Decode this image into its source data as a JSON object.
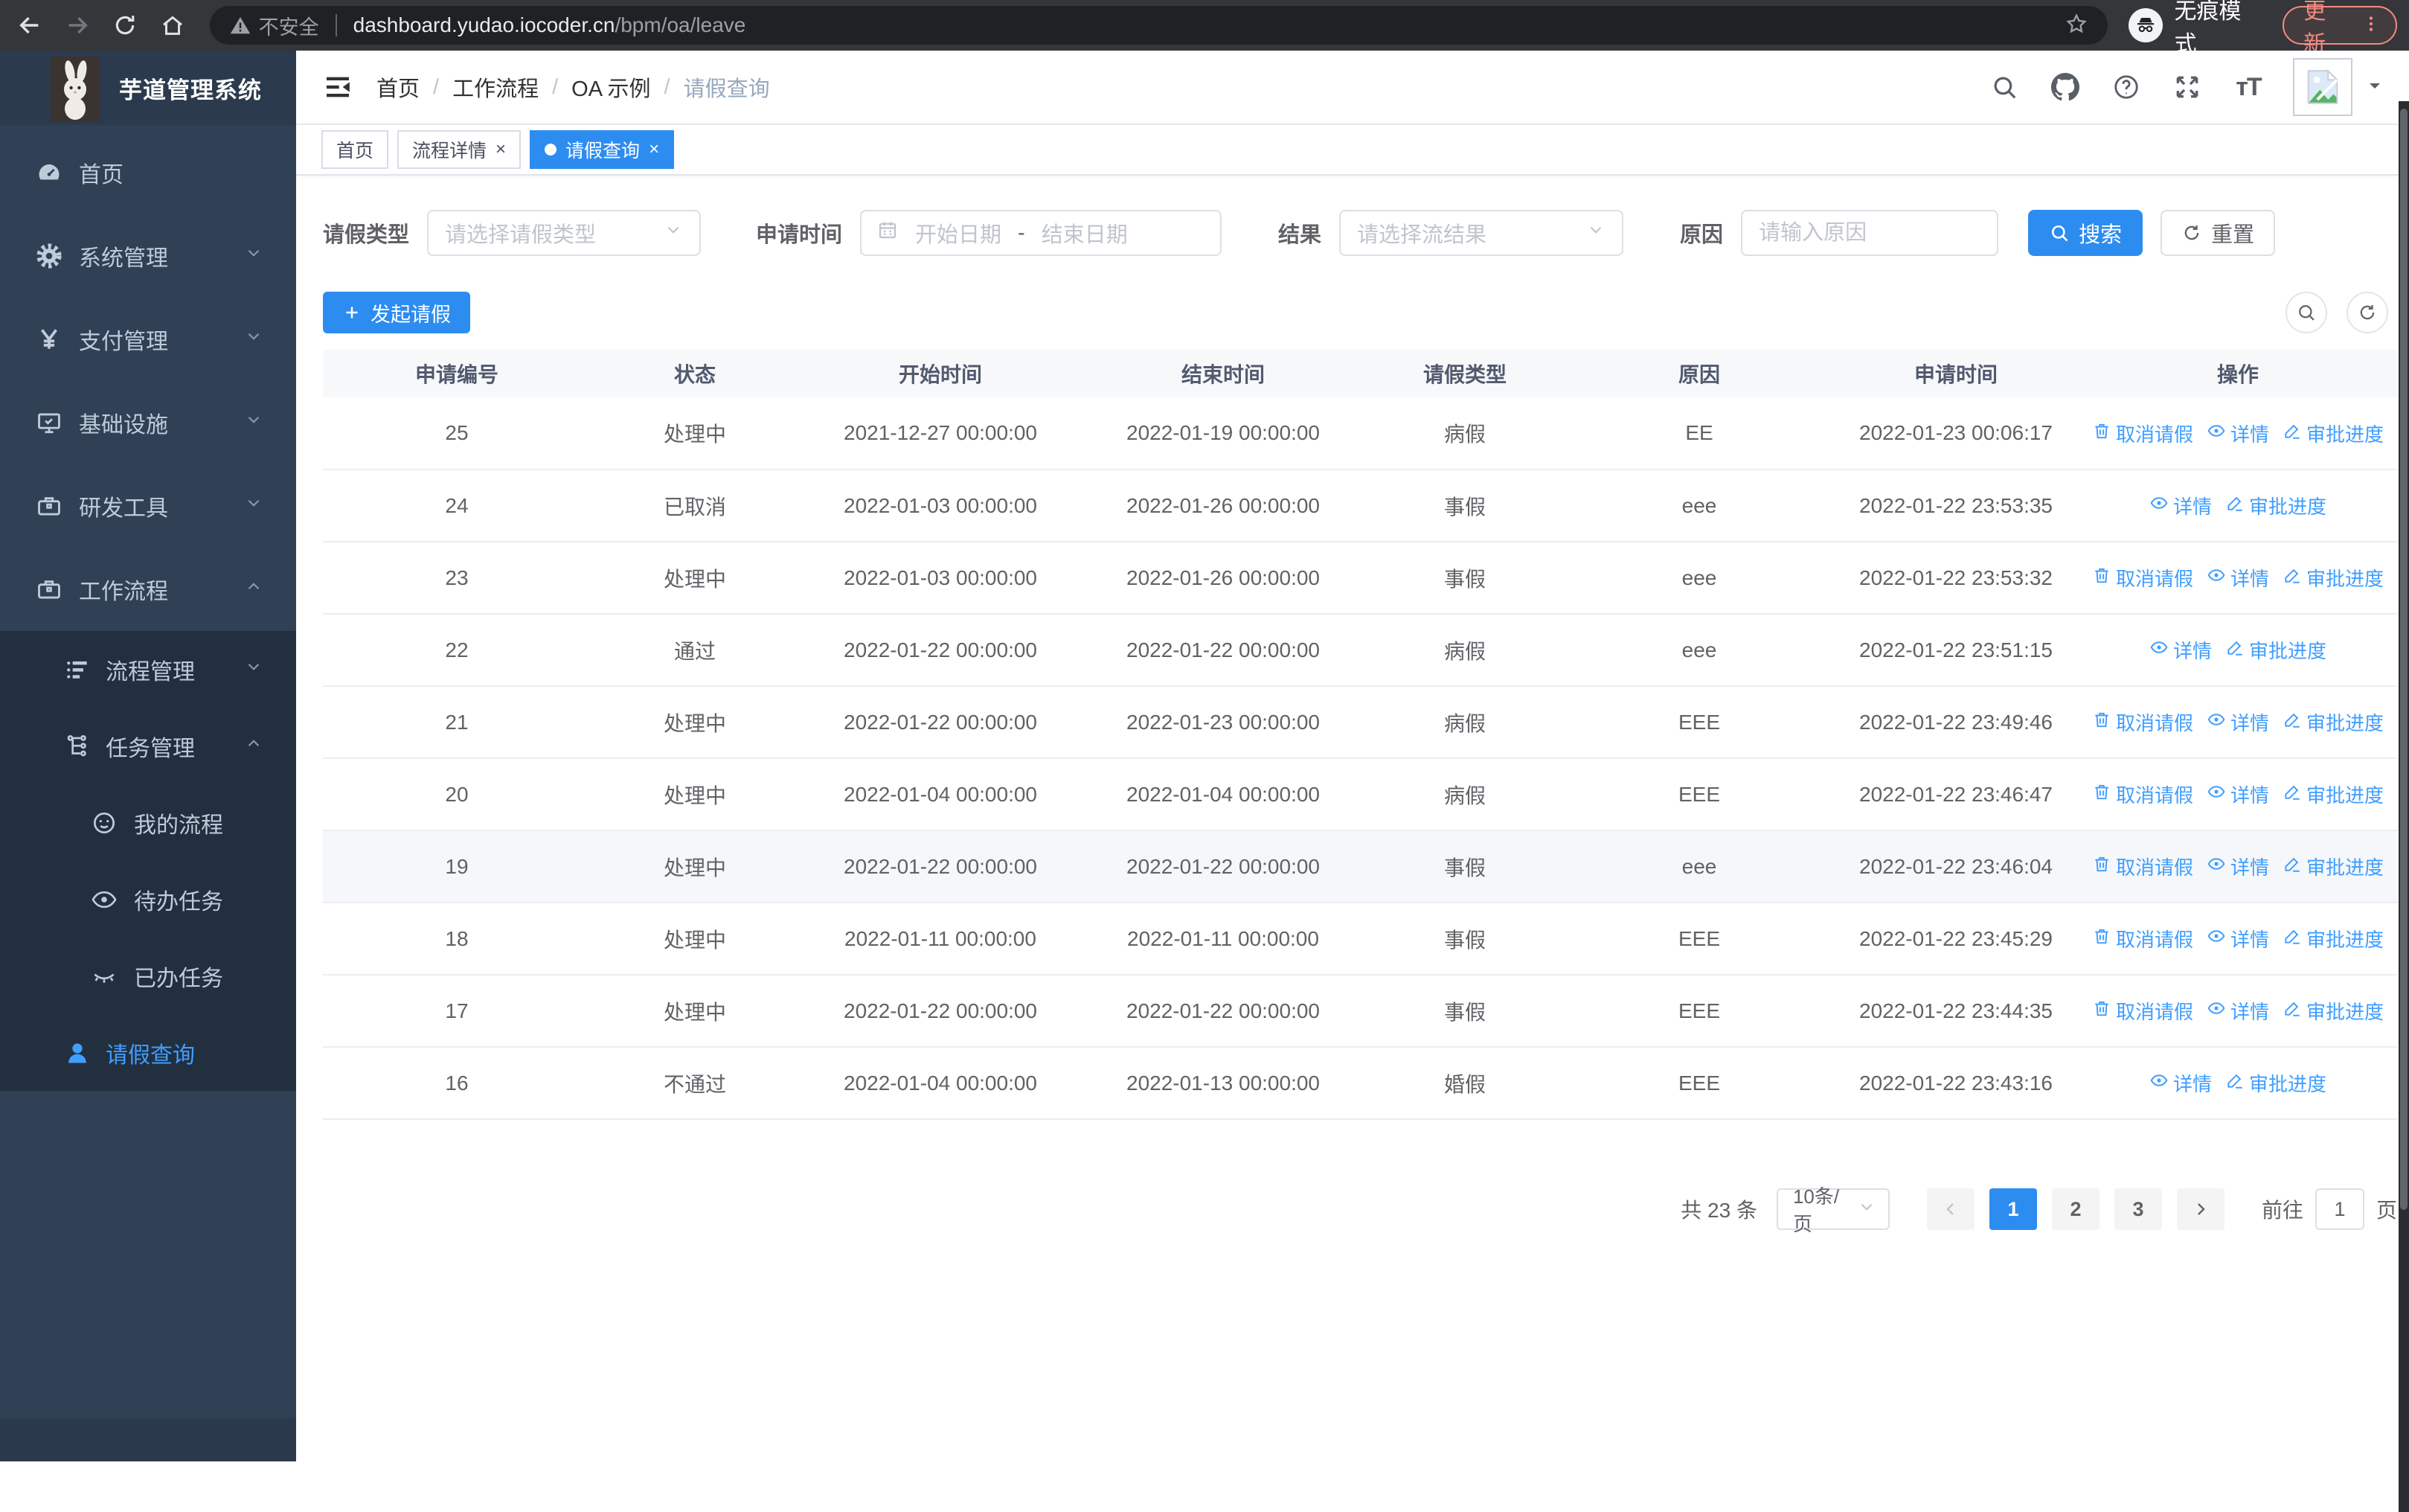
{
  "colors": {
    "accent": "#2d8cf0",
    "link": "#409eff",
    "sidebar_bg": "#304156",
    "submenu_bg": "#212f3f",
    "sidebar_text": "#bfcbd9"
  },
  "browser": {
    "nav_icons": [
      "back-icon",
      "forward-icon",
      "reload-icon",
      "home-icon"
    ],
    "security_label": "不安全",
    "url_host": "dashboard.yudao.iocoder.cn",
    "url_path": "/bpm/oa/leave",
    "bookmark_icon": "star-icon",
    "incognito_icon": "incognito-icon",
    "incognito_label": "无痕模式",
    "update_label": "更新",
    "menu_icon": "kebab-menu-icon"
  },
  "app": {
    "title": "芋道管理系统",
    "logo_icon": "rabbit-logo"
  },
  "sidebar": {
    "items": [
      {
        "label": "首页",
        "icon": "dashboard-icon",
        "level": 1,
        "chevron": null,
        "active": false
      },
      {
        "label": "系统管理",
        "icon": "gear-icon",
        "level": 1,
        "chevron": "down",
        "active": false
      },
      {
        "label": "支付管理",
        "icon": "yen-icon",
        "level": 1,
        "chevron": "down",
        "active": false
      },
      {
        "label": "基础设施",
        "icon": "monitor-icon",
        "level": 1,
        "chevron": "down",
        "active": false
      },
      {
        "label": "研发工具",
        "icon": "toolbox-icon",
        "level": 1,
        "chevron": "down",
        "active": false
      },
      {
        "label": "工作流程",
        "icon": "briefcase-icon",
        "level": 1,
        "chevron": "up",
        "active": false
      }
    ],
    "submenu": [
      {
        "label": "流程管理",
        "icon": "flow-list-icon",
        "level": 2,
        "chevron": "down",
        "active": false
      },
      {
        "label": "任务管理",
        "icon": "task-tree-icon",
        "level": 2,
        "chevron": "up",
        "active": false
      },
      {
        "label": "我的流程",
        "icon": "robot-face-icon",
        "level": 3,
        "chevron": null,
        "active": false
      },
      {
        "label": "待办任务",
        "icon": "eye-open-icon",
        "level": 3,
        "chevron": null,
        "active": false
      },
      {
        "label": "已办任务",
        "icon": "eye-closed-icon",
        "level": 3,
        "chevron": null,
        "active": false
      },
      {
        "label": "请假查询",
        "icon": "user-icon",
        "level": 2,
        "chevron": null,
        "active": true
      }
    ]
  },
  "header": {
    "fold_icon": "fold-menu-icon",
    "breadcrumb": [
      "首页",
      "工作流程",
      "OA 示例",
      "请假查询"
    ],
    "icons": [
      "search-icon",
      "github-icon",
      "question-icon",
      "fullscreen-icon",
      "font-size-icon"
    ],
    "avatar_icon": "broken-image-icon",
    "caret_icon": "caret-down-icon"
  },
  "tabs": [
    {
      "label": "首页",
      "closable": false,
      "active": false
    },
    {
      "label": "流程详情",
      "closable": true,
      "active": false
    },
    {
      "label": "请假查询",
      "closable": true,
      "active": true
    }
  ],
  "filters": {
    "leave_type_label": "请假类型",
    "leave_type_placeholder": "请选择请假类型",
    "apply_time_label": "申请时间",
    "start_date_placeholder": "开始日期",
    "range_separator": "-",
    "end_date_placeholder": "结束日期",
    "result_label": "结果",
    "result_placeholder": "请选择流结果",
    "reason_label": "原因",
    "reason_placeholder": "请输入原因",
    "search_label": "搜索",
    "reset_label": "重置"
  },
  "toolbar": {
    "create_label": "发起请假",
    "tools": [
      "search-icon",
      "refresh-icon"
    ]
  },
  "table": {
    "columns": [
      "申请编号",
      "状态",
      "开始时间",
      "结束时间",
      "请假类型",
      "原因",
      "申请时间",
      "操作"
    ],
    "actions": {
      "cancel": {
        "label": "取消请假",
        "icon": "trash-icon"
      },
      "detail": {
        "label": "详情",
        "icon": "eye-icon"
      },
      "progress": {
        "label": "审批进度",
        "icon": "pen-icon"
      }
    },
    "rows": [
      {
        "id": "25",
        "status": "处理中",
        "start": "2021-12-27 00:00:00",
        "end": "2022-01-19 00:00:00",
        "type": "病假",
        "reason": "EE",
        "applied": "2022-01-23 00:06:17",
        "actions": [
          "cancel",
          "detail",
          "progress"
        ],
        "highlight": false
      },
      {
        "id": "24",
        "status": "已取消",
        "start": "2022-01-03 00:00:00",
        "end": "2022-01-26 00:00:00",
        "type": "事假",
        "reason": "eee",
        "applied": "2022-01-22 23:53:35",
        "actions": [
          "detail",
          "progress"
        ],
        "highlight": false
      },
      {
        "id": "23",
        "status": "处理中",
        "start": "2022-01-03 00:00:00",
        "end": "2022-01-26 00:00:00",
        "type": "事假",
        "reason": "eee",
        "applied": "2022-01-22 23:53:32",
        "actions": [
          "cancel",
          "detail",
          "progress"
        ],
        "highlight": false
      },
      {
        "id": "22",
        "status": "通过",
        "start": "2022-01-22 00:00:00",
        "end": "2022-01-22 00:00:00",
        "type": "病假",
        "reason": "eee",
        "applied": "2022-01-22 23:51:15",
        "actions": [
          "detail",
          "progress"
        ],
        "highlight": false
      },
      {
        "id": "21",
        "status": "处理中",
        "start": "2022-01-22 00:00:00",
        "end": "2022-01-23 00:00:00",
        "type": "病假",
        "reason": "EEE",
        "applied": "2022-01-22 23:49:46",
        "actions": [
          "cancel",
          "detail",
          "progress"
        ],
        "highlight": false
      },
      {
        "id": "20",
        "status": "处理中",
        "start": "2022-01-04 00:00:00",
        "end": "2022-01-04 00:00:00",
        "type": "病假",
        "reason": "EEE",
        "applied": "2022-01-22 23:46:47",
        "actions": [
          "cancel",
          "detail",
          "progress"
        ],
        "highlight": false
      },
      {
        "id": "19",
        "status": "处理中",
        "start": "2022-01-22 00:00:00",
        "end": "2022-01-22 00:00:00",
        "type": "事假",
        "reason": "eee",
        "applied": "2022-01-22 23:46:04",
        "actions": [
          "cancel",
          "detail",
          "progress"
        ],
        "highlight": true
      },
      {
        "id": "18",
        "status": "处理中",
        "start": "2022-01-11 00:00:00",
        "end": "2022-01-11 00:00:00",
        "type": "事假",
        "reason": "EEE",
        "applied": "2022-01-22 23:45:29",
        "actions": [
          "cancel",
          "detail",
          "progress"
        ],
        "highlight": false
      },
      {
        "id": "17",
        "status": "处理中",
        "start": "2022-01-22 00:00:00",
        "end": "2022-01-22 00:00:00",
        "type": "事假",
        "reason": "EEE",
        "applied": "2022-01-22 23:44:35",
        "actions": [
          "cancel",
          "detail",
          "progress"
        ],
        "highlight": false
      },
      {
        "id": "16",
        "status": "不通过",
        "start": "2022-01-04 00:00:00",
        "end": "2022-01-13 00:00:00",
        "type": "婚假",
        "reason": "EEE",
        "applied": "2022-01-22 23:43:16",
        "actions": [
          "detail",
          "progress"
        ],
        "highlight": false
      }
    ]
  },
  "pagination": {
    "total_label": "共 23 条",
    "page_size_label": "10条/页",
    "pages": [
      "1",
      "2",
      "3"
    ],
    "current_page": "1",
    "prev_icon": "chevron-left-icon",
    "next_icon": "chevron-right-icon",
    "goto_label": "前往",
    "goto_value": "1",
    "page_unit_label": "页"
  }
}
